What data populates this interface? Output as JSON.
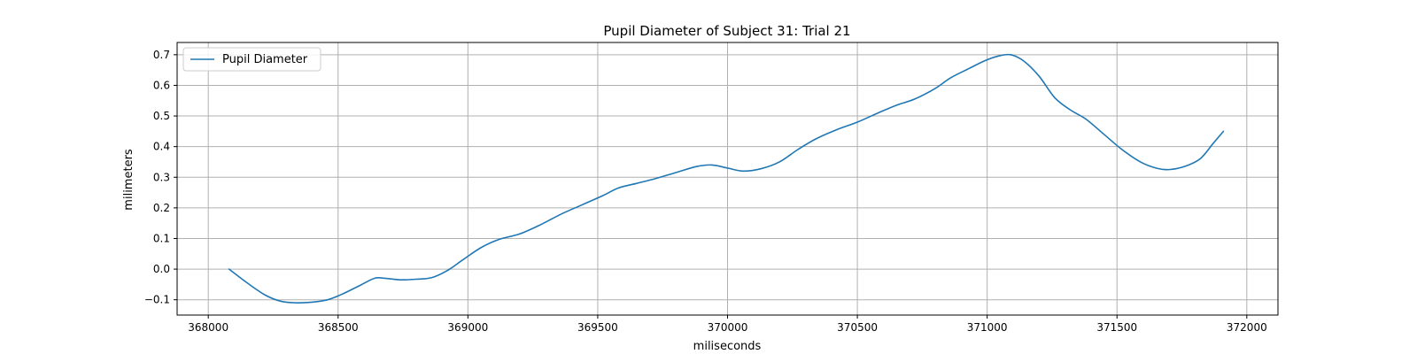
{
  "chart_data": {
    "type": "line",
    "title": "Pupil Diameter of Subject 31: Trial 21",
    "xlabel": "miliseconds",
    "ylabel": "milimeters",
    "xlim": [
      367880,
      372120
    ],
    "ylim": [
      -0.15,
      0.74
    ],
    "xticks": [
      368000,
      368500,
      369000,
      369500,
      370000,
      370500,
      371000,
      371500,
      372000
    ],
    "yticks": [
      -0.1,
      0.0,
      0.1,
      0.2,
      0.3,
      0.4,
      0.5,
      0.6,
      0.7
    ],
    "ytick_labels": [
      "−0.1",
      "0.0",
      "0.1",
      "0.2",
      "0.3",
      "0.4",
      "0.5",
      "0.6",
      "0.7"
    ],
    "grid": true,
    "legend_position": "top-left",
    "series": [
      {
        "name": "Pupil Diameter",
        "color": "#1f77b4",
        "x": [
          368080,
          368150,
          368220,
          368280,
          368340,
          368400,
          368460,
          368520,
          368580,
          368640,
          368680,
          368740,
          368800,
          368860,
          368920,
          368980,
          369050,
          369120,
          369200,
          369280,
          369360,
          369440,
          369520,
          369580,
          369650,
          369720,
          369800,
          369880,
          369940,
          370000,
          370060,
          370130,
          370200,
          370270,
          370340,
          370420,
          370500,
          370580,
          370650,
          370720,
          370800,
          370860,
          370930,
          370990,
          371040,
          371090,
          371140,
          371200,
          371260,
          371320,
          371380,
          371450,
          371520,
          371590,
          371650,
          371700,
          371760,
          371820,
          371870,
          371910
        ],
        "y": [
          0.0,
          -0.045,
          -0.085,
          -0.105,
          -0.11,
          -0.108,
          -0.1,
          -0.08,
          -0.055,
          -0.03,
          -0.03,
          -0.035,
          -0.033,
          -0.028,
          -0.005,
          0.03,
          0.07,
          0.097,
          0.115,
          0.145,
          0.18,
          0.21,
          0.24,
          0.265,
          0.28,
          0.295,
          0.315,
          0.335,
          0.34,
          0.33,
          0.32,
          0.328,
          0.35,
          0.39,
          0.425,
          0.455,
          0.48,
          0.51,
          0.535,
          0.555,
          0.59,
          0.625,
          0.655,
          0.68,
          0.695,
          0.7,
          0.68,
          0.63,
          0.56,
          0.52,
          0.49,
          0.44,
          0.39,
          0.35,
          0.33,
          0.325,
          0.335,
          0.36,
          0.41,
          0.45
        ]
      }
    ]
  }
}
